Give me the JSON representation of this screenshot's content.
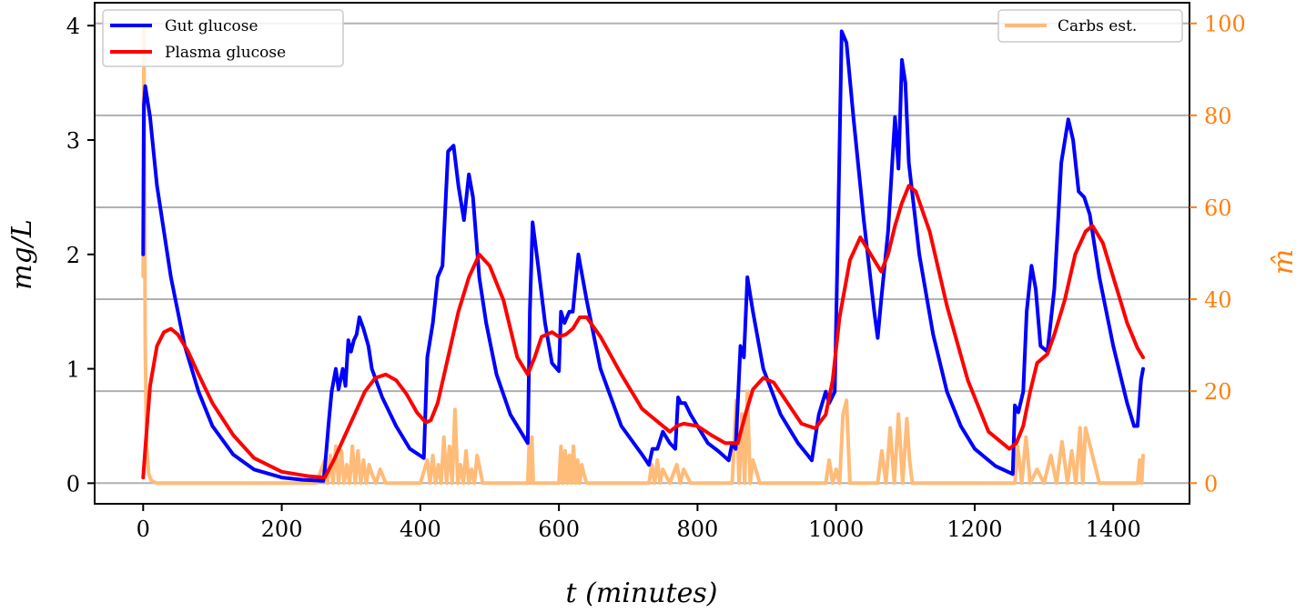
{
  "chart_data": {
    "type": "line",
    "xlabel": "t (minutes)",
    "ylabel_left": "mg/L",
    "ylabel_right": "m̂",
    "xlim": [
      -70,
      1510
    ],
    "ylim_left": [
      -0.18,
      4.2
    ],
    "ylim_right": [
      -4.5,
      104.5
    ],
    "x_ticks": [
      0,
      200,
      400,
      600,
      800,
      1000,
      1200,
      1400
    ],
    "y_ticks_left": [
      0,
      1,
      2,
      3,
      4
    ],
    "y_ticks_right": [
      0,
      20,
      40,
      60,
      80,
      100
    ],
    "grid": "horizontal, right axis",
    "legend_left_position": "upper-left",
    "legend_right_position": "upper-right",
    "series": [
      {
        "name": "Gut glucose",
        "axis": "left",
        "color": "#0000ff",
        "x": [
          0,
          1,
          3,
          10,
          20,
          40,
          60,
          80,
          100,
          130,
          160,
          200,
          230,
          260,
          262,
          268,
          272,
          278,
          282,
          288,
          292,
          296,
          300,
          304,
          308,
          312,
          318,
          325,
          330,
          345,
          365,
          385,
          405,
          410,
          418,
          425,
          432,
          440,
          448,
          455,
          463,
          470,
          476,
          485,
          495,
          510,
          530,
          555,
          558,
          562,
          570,
          580,
          590,
          600,
          603,
          608,
          615,
          620,
          628,
          640,
          660,
          690,
          720,
          730,
          735,
          742,
          750,
          760,
          768,
          772,
          776,
          782,
          790,
          800,
          815,
          830,
          845,
          850,
          855,
          862,
          867,
          872,
          880,
          895,
          920,
          945,
          965,
          975,
          985,
          990,
          998,
          1003,
          1008,
          1015,
          1025,
          1040,
          1055,
          1060,
          1065,
          1075,
          1085,
          1090,
          1095,
          1100,
          1105,
          1120,
          1140,
          1160,
          1180,
          1200,
          1230,
          1255,
          1258,
          1263,
          1270,
          1275,
          1282,
          1288,
          1295,
          1305,
          1315,
          1325,
          1335,
          1342,
          1350,
          1358,
          1366,
          1380,
          1400,
          1420,
          1430,
          1435,
          1440,
          1443
        ],
        "y": [
          2.0,
          3.3,
          3.47,
          3.2,
          2.6,
          1.8,
          1.2,
          0.8,
          0.5,
          0.25,
          0.12,
          0.05,
          0.03,
          0.02,
          0.12,
          0.55,
          0.8,
          1.0,
          0.82,
          1.0,
          0.85,
          1.25,
          1.15,
          1.25,
          1.3,
          1.45,
          1.35,
          1.2,
          1.0,
          0.75,
          0.5,
          0.3,
          0.22,
          1.1,
          1.4,
          1.8,
          1.9,
          2.9,
          2.95,
          2.6,
          2.3,
          2.7,
          2.5,
          1.8,
          1.4,
          0.95,
          0.6,
          0.35,
          1.5,
          2.28,
          1.9,
          1.4,
          1.05,
          0.98,
          1.5,
          1.4,
          1.5,
          1.5,
          2.0,
          1.6,
          1.0,
          0.5,
          0.25,
          0.16,
          0.3,
          0.3,
          0.45,
          0.35,
          0.3,
          0.75,
          0.7,
          0.7,
          0.6,
          0.5,
          0.35,
          0.28,
          0.2,
          0.35,
          0.3,
          1.2,
          1.1,
          1.8,
          1.5,
          1.0,
          0.6,
          0.35,
          0.2,
          0.6,
          0.8,
          0.7,
          0.8,
          2.3,
          3.95,
          3.85,
          3.2,
          2.3,
          1.5,
          1.27,
          1.6,
          2.2,
          3.2,
          2.75,
          3.7,
          3.5,
          2.8,
          2.0,
          1.3,
          0.8,
          0.5,
          0.3,
          0.15,
          0.08,
          0.68,
          0.62,
          0.8,
          1.5,
          1.9,
          1.7,
          1.2,
          1.15,
          1.7,
          2.8,
          3.18,
          3.0,
          2.55,
          2.5,
          2.35,
          1.8,
          1.2,
          0.7,
          0.5,
          0.5,
          0.9,
          1.0
        ]
      },
      {
        "name": "Plasma glucose",
        "axis": "left",
        "color": "#ff0000",
        "x": [
          0,
          3,
          10,
          20,
          30,
          40,
          50,
          65,
          80,
          100,
          130,
          160,
          200,
          240,
          262,
          275,
          290,
          305,
          320,
          335,
          350,
          365,
          380,
          395,
          408,
          415,
          425,
          440,
          455,
          470,
          485,
          500,
          520,
          540,
          555,
          565,
          575,
          590,
          600,
          610,
          620,
          630,
          640,
          660,
          690,
          720,
          740,
          760,
          770,
          780,
          800,
          820,
          840,
          858,
          870,
          880,
          895,
          910,
          930,
          950,
          970,
          985,
          995,
          1005,
          1020,
          1035,
          1050,
          1065,
          1075,
          1085,
          1095,
          1105,
          1115,
          1135,
          1160,
          1190,
          1220,
          1250,
          1260,
          1270,
          1280,
          1290,
          1305,
          1315,
          1330,
          1345,
          1360,
          1370,
          1385,
          1405,
          1420,
          1435,
          1443
        ],
        "y": [
          0.05,
          0.3,
          0.85,
          1.2,
          1.32,
          1.35,
          1.3,
          1.15,
          0.95,
          0.7,
          0.42,
          0.22,
          0.1,
          0.06,
          0.05,
          0.2,
          0.4,
          0.6,
          0.8,
          0.92,
          0.95,
          0.9,
          0.78,
          0.62,
          0.53,
          0.55,
          0.7,
          1.1,
          1.5,
          1.8,
          2.0,
          1.9,
          1.6,
          1.1,
          0.95,
          1.1,
          1.28,
          1.32,
          1.28,
          1.3,
          1.35,
          1.45,
          1.45,
          1.28,
          0.95,
          0.65,
          0.55,
          0.45,
          0.5,
          0.52,
          0.5,
          0.42,
          0.35,
          0.35,
          0.62,
          0.82,
          0.92,
          0.88,
          0.7,
          0.52,
          0.48,
          0.6,
          0.9,
          1.45,
          1.95,
          2.15,
          2.0,
          1.85,
          2.0,
          2.25,
          2.45,
          2.6,
          2.55,
          2.2,
          1.55,
          0.9,
          0.45,
          0.3,
          0.35,
          0.5,
          0.8,
          1.05,
          1.13,
          1.3,
          1.6,
          2.0,
          2.2,
          2.25,
          2.1,
          1.7,
          1.4,
          1.18,
          1.1
        ]
      },
      {
        "name": "Carbs est.",
        "axis": "right",
        "color": "#ffbb78",
        "x": [
          0,
          1,
          3,
          5,
          8,
          12,
          20,
          50,
          100,
          150,
          200,
          250,
          262,
          266,
          270,
          274,
          278,
          282,
          286,
          290,
          294,
          298,
          302,
          306,
          310,
          314,
          318,
          322,
          326,
          330,
          336,
          342,
          350,
          360,
          380,
          400,
          410,
          414,
          418,
          422,
          426,
          430,
          434,
          438,
          442,
          446,
          450,
          454,
          458,
          462,
          466,
          470,
          474,
          478,
          482,
          490,
          500,
          520,
          540,
          555,
          557,
          559,
          561,
          563,
          570,
          580,
          590,
          600,
          603,
          606,
          609,
          612,
          615,
          618,
          621,
          624,
          627,
          630,
          633,
          636,
          640,
          660,
          700,
          730,
          734,
          738,
          742,
          746,
          750,
          760,
          770,
          775,
          780,
          790,
          800,
          850,
          856,
          860,
          864,
          868,
          872,
          876,
          880,
          890,
          920,
          960,
          985,
          990,
          995,
          1000,
          1005,
          1010,
          1015,
          1020,
          1030,
          1050,
          1060,
          1066,
          1072,
          1078,
          1084,
          1090,
          1096,
          1102,
          1106,
          1110,
          1130,
          1200,
          1258,
          1262,
          1268,
          1274,
          1280,
          1290,
          1300,
          1310,
          1318,
          1326,
          1334,
          1340,
          1346,
          1352,
          1356,
          1360,
          1380,
          1420,
          1435,
          1438,
          1441,
          1443
        ],
        "y": [
          45,
          100,
          30,
          8,
          2,
          0.5,
          0,
          0,
          0,
          0,
          0,
          0,
          5,
          0,
          6,
          0,
          8,
          0,
          7,
          0,
          4,
          0,
          8,
          0,
          7,
          0,
          5,
          0,
          4,
          2,
          0,
          3,
          0,
          0,
          0,
          0,
          5,
          0,
          6,
          0,
          4,
          0,
          10,
          0,
          8,
          0,
          16,
          0,
          4,
          0,
          7,
          0,
          3,
          0,
          6,
          0,
          0,
          0,
          0,
          0,
          8,
          0,
          10,
          0,
          0,
          0,
          0,
          0,
          8,
          0,
          7,
          0,
          6,
          0,
          8,
          0,
          5,
          0,
          4,
          2,
          0,
          0,
          0,
          0,
          4,
          0,
          5,
          0,
          3,
          0,
          4,
          0,
          3,
          0,
          0,
          0,
          18,
          0,
          15,
          0,
          20,
          0,
          5,
          0,
          0,
          0,
          0,
          5,
          0,
          3,
          0,
          15,
          18,
          0,
          0,
          0,
          0,
          7,
          0,
          12,
          0,
          15,
          0,
          14,
          5,
          0,
          0,
          0,
          0,
          8,
          0,
          10,
          0,
          3,
          0,
          6,
          0,
          9,
          0,
          7,
          0,
          12,
          0,
          12,
          0,
          0,
          0,
          5,
          0,
          6
        ]
      }
    ]
  }
}
